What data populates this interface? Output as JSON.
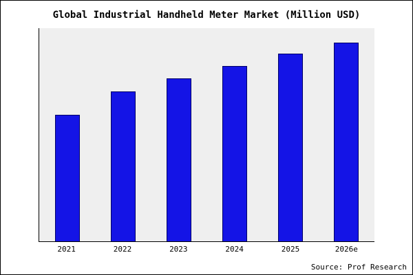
{
  "chart_data": {
    "type": "bar",
    "title": "Global Industrial Handheld Meter Market (Million USD)",
    "categories": [
      "2021",
      "2022",
      "2023",
      "2024",
      "2025",
      "2026e"
    ],
    "values": [
      190,
      225,
      245,
      263,
      282,
      298
    ],
    "ylim": [
      0,
      320
    ],
    "xlabel": "",
    "ylabel": "",
    "grid": false,
    "legend": false,
    "bar_color": "#1414e6",
    "bar_border_color": "#000066",
    "plot_bg": "#efefef",
    "source": "Source: Prof Research"
  }
}
